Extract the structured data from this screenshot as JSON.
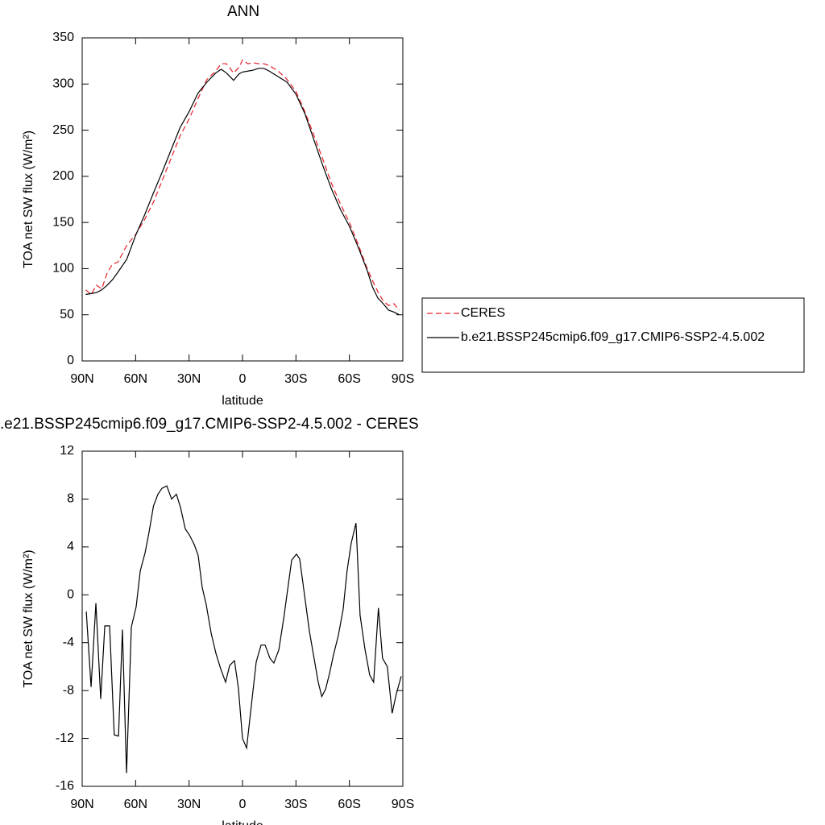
{
  "chart_data": [
    {
      "type": "line",
      "title": "ANN",
      "xlabel": "latitude",
      "ylabel": "TOA net SW flux (W/m²)",
      "xlim": [
        90,
        -90
      ],
      "ylim": [
        0,
        350
      ],
      "xticks": [
        {
          "value": 90,
          "label": "90N"
        },
        {
          "value": 60,
          "label": "60N"
        },
        {
          "value": 30,
          "label": "30N"
        },
        0,
        {
          "value": -30,
          "label": "30S"
        },
        {
          "value": -60,
          "label": "60S"
        },
        {
          "value": -90,
          "label": "90S"
        }
      ],
      "yticks": [
        0,
        50,
        100,
        150,
        200,
        250,
        300,
        350
      ],
      "legend": "right",
      "x": [
        88,
        85,
        82,
        79,
        76,
        73,
        70,
        65,
        60,
        55,
        50,
        45,
        40,
        35,
        30,
        25,
        20,
        15,
        12,
        9,
        5,
        2,
        0,
        -3,
        -6,
        -9,
        -12,
        -15,
        -20,
        -25,
        -30,
        -35,
        -40,
        -45,
        -50,
        -55,
        -60,
        -65,
        -70,
        -73,
        -76,
        -79,
        -82,
        -85,
        -88
      ],
      "series": [
        {
          "name": "CERES",
          "color": "#e8202a",
          "linestyle": "dashed",
          "values": [
            77,
            72,
            82,
            78,
            95,
            105,
            107,
            125,
            137,
            153,
            172,
            196,
            220,
            244,
            262,
            284,
            305,
            314,
            322,
            322,
            312,
            318,
            326,
            322,
            323,
            322,
            322,
            320,
            314,
            305,
            292,
            270,
            245,
            219,
            192,
            170,
            150,
            126,
            100,
            87,
            75,
            65,
            60,
            62,
            55
          ]
        },
        {
          "name": "b.e21.BSSP245cmip6.f09_g17.CMIP6-SSP2-4.5.002",
          "color": "#000000",
          "linestyle": "solid",
          "values": [
            72,
            73,
            74,
            77,
            82,
            88,
            96,
            110,
            136,
            158,
            182,
            205,
            229,
            253,
            270,
            290,
            302,
            312,
            316,
            312,
            304,
            311,
            313,
            314,
            315,
            317,
            317,
            314,
            308,
            302,
            289,
            268,
            240,
            212,
            186,
            164,
            146,
            123,
            98,
            80,
            68,
            62,
            55,
            53,
            50
          ]
        }
      ]
    },
    {
      "type": "line",
      "title": ".e21.BSSP245cmip6.f09_g17.CMIP6-SSP2-4.5.002 - CERES",
      "xlabel": "latitude",
      "ylabel": "TOA net SW flux (W/m²)",
      "xlim": [
        90,
        -90
      ],
      "ylim": [
        -16,
        12
      ],
      "xticks": [
        {
          "value": 90,
          "label": "90N"
        },
        {
          "value": 60,
          "label": "60N"
        },
        {
          "value": 30,
          "label": "30N"
        },
        0,
        {
          "value": -30,
          "label": "30S"
        },
        {
          "value": -60,
          "label": "60S"
        },
        {
          "value": -90,
          "label": "90S"
        }
      ],
      "yticks": [
        -16,
        -12,
        -8,
        -4,
        0,
        4,
        8,
        12
      ],
      "x": [
        87.7,
        85,
        82.3,
        79.6,
        77.3,
        74.6,
        72,
        69.6,
        67.4,
        65.1,
        62.4,
        59.7,
        57.4,
        54.7,
        52.5,
        50,
        47.5,
        45.2,
        42.5,
        39.8,
        37.1,
        34.8,
        32.1,
        29.8,
        27.1,
        24.9,
        22.6,
        20.4,
        17.6,
        14.9,
        12.2,
        9.5,
        7.2,
        4.5,
        2.3,
        0,
        -2.3,
        -7.7,
        -10.4,
        -12.7,
        -15.4,
        -17.6,
        -20.4,
        -23.1,
        -25.4,
        -27.6,
        -30.3,
        -32.1,
        -34.8,
        -37.5,
        -42.5,
        -44.5,
        -46.6,
        -48.8,
        -51.1,
        -53.8,
        -56.5,
        -58.7,
        -61,
        -63.7,
        -66,
        -68.7,
        -71.4,
        -73.6,
        -76.3,
        -78.6,
        -81.3,
        -84,
        -86.3,
        -89.1
      ],
      "series": [
        {
          "color": "#000000",
          "linestyle": "solid",
          "values": [
            -1.4,
            -7.7,
            -0.7,
            -8.7,
            -2.6,
            -2.6,
            -11.7,
            -11.8,
            -2.9,
            -14.9,
            -2.7,
            -1.0,
            2.0,
            3.5,
            5.2,
            7.4,
            8.4,
            8.9,
            9.1,
            8.0,
            8.4,
            7.3,
            5.5,
            5.0,
            4.2,
            3.3,
            0.6,
            -0.8,
            -3.2,
            -4.9,
            -6.2,
            -7.3,
            -5.9,
            -5.5,
            -7.8,
            -12.0,
            -12.8,
            -5.6,
            -4.2,
            -4.2,
            -5.3,
            -5.7,
            -4.6,
            -2.0,
            0.5,
            2.9,
            3.4,
            3.0,
            0.0,
            -3.0,
            -7.3,
            -8.5,
            -7.9,
            -6.6,
            -5.0,
            -3.4,
            -1.2,
            2.0,
            4.3,
            6.0,
            -1.7,
            -4.5,
            -6.7,
            -7.3,
            -1.1,
            -5.3,
            -6.0,
            -9.9,
            -8.3,
            -6.8
          ]
        }
      ]
    }
  ]
}
